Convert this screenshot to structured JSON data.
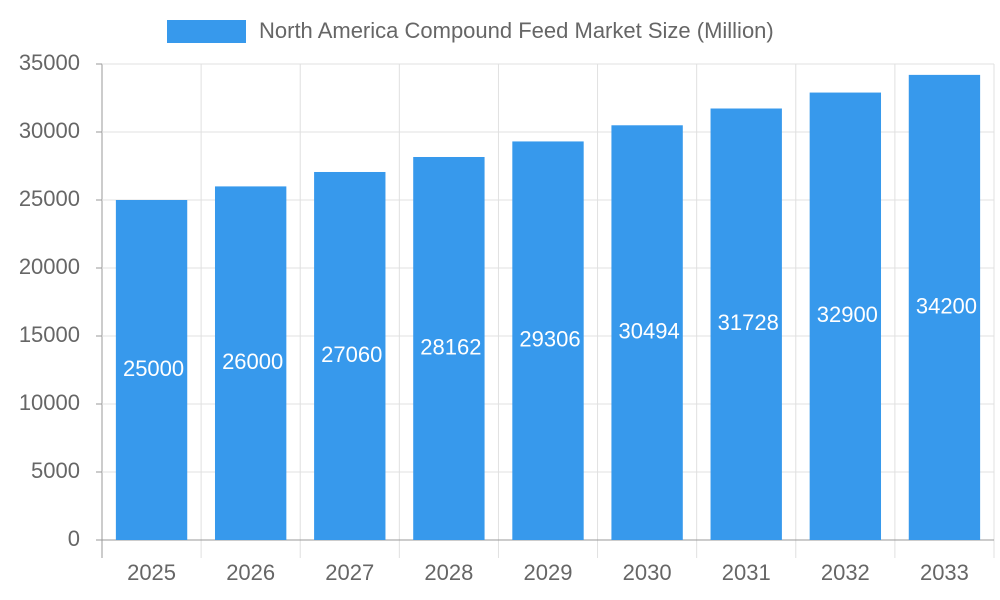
{
  "chart_data": {
    "type": "bar",
    "legend_label": "North America Compound Feed Market Size (Million)",
    "categories": [
      "2025",
      "2026",
      "2027",
      "2028",
      "2029",
      "2030",
      "2031",
      "2032",
      "2033"
    ],
    "values": [
      25000,
      26000,
      27060,
      28162,
      29306,
      30494,
      31728,
      32900,
      34200
    ],
    "color": "#3799ec",
    "ylim": [
      0,
      35000
    ],
    "yticks": [
      0,
      5000,
      10000,
      15000,
      20000,
      25000,
      30000,
      35000
    ],
    "grid": true
  }
}
